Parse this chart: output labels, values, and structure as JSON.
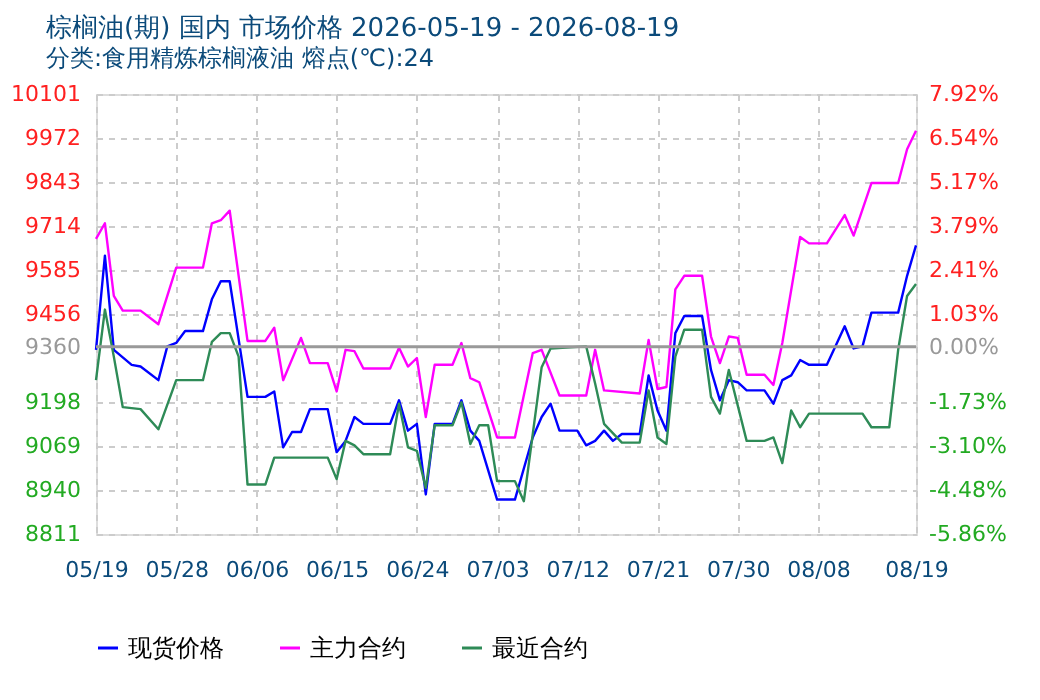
{
  "chart_data": {
    "type": "line",
    "title": "棕榈油(期) 国内 市场价格 2026-05-19 - 2026-08-19",
    "subtitle": "分类:食用精炼棕榈液油 熔点(℃):24",
    "xlim": [
      "2026-05-19",
      "2026-08-19"
    ],
    "xticks": [
      {
        "value": "2026-05-19",
        "label": "05/19"
      },
      {
        "value": "2026-05-28",
        "label": "05/28"
      },
      {
        "value": "2026-06-06",
        "label": "06/06"
      },
      {
        "value": "2026-06-15",
        "label": "06/15"
      },
      {
        "value": "2026-06-24",
        "label": "06/24"
      },
      {
        "value": "2026-07-03",
        "label": "07/03"
      },
      {
        "value": "2026-07-12",
        "label": "07/12"
      },
      {
        "value": "2026-07-21",
        "label": "07/21"
      },
      {
        "value": "2026-07-30",
        "label": "07/30"
      },
      {
        "value": "2026-08-08",
        "label": "08/08"
      },
      {
        "value": "2026-08-19",
        "label": "08/19"
      }
    ],
    "ylim": [
      8811,
      10101
    ],
    "yticks": [
      8811,
      8940,
      9069,
      9198,
      9360,
      9456,
      9585,
      9714,
      9843,
      9972,
      10101
    ],
    "y2lim": [
      -5.86,
      7.92
    ],
    "y2ticks": [
      {
        "value": -5.86,
        "label": "-5.86%"
      },
      {
        "value": -4.48,
        "label": "-4.48%"
      },
      {
        "value": -3.1,
        "label": "-3.10%"
      },
      {
        "value": -1.73,
        "label": "-1.73%"
      },
      {
        "value": 0,
        "label": "0.00%"
      },
      {
        "value": 1.03,
        "label": "1.03%"
      },
      {
        "value": 2.41,
        "label": "2.41%"
      },
      {
        "value": 3.79,
        "label": "3.79%"
      },
      {
        "value": 5.17,
        "label": "5.17%"
      },
      {
        "value": 6.54,
        "label": "6.54%"
      },
      {
        "value": 7.92,
        "label": "7.92%"
      }
    ],
    "ref_lines": [
      {
        "axis": "y",
        "value": 9360,
        "color": "#999999"
      }
    ],
    "grid": true,
    "legend": "bottom",
    "marker": "none",
    "line_style": "solid",
    "series": [
      {
        "name": "现货价格",
        "color": "#0000ff",
        "x": [
          "2026-05-19",
          "2026-05-20",
          "2026-05-21",
          "2026-05-23",
          "2026-05-24",
          "2026-05-26",
          "2026-05-27",
          "2026-05-28",
          "2026-05-29",
          "2026-05-31",
          "2026-06-01",
          "2026-06-02",
          "2026-06-03",
          "2026-06-05",
          "2026-06-07",
          "2026-06-08",
          "2026-06-09",
          "2026-06-10",
          "2026-06-11",
          "2026-06-12",
          "2026-06-14",
          "2026-06-15",
          "2026-06-16",
          "2026-06-17",
          "2026-06-18",
          "2026-06-21",
          "2026-06-22",
          "2026-06-23",
          "2026-06-24",
          "2026-06-25",
          "2026-06-26",
          "2026-06-28",
          "2026-06-29",
          "2026-06-30",
          "2026-07-01",
          "2026-07-03",
          "2026-07-05",
          "2026-07-07",
          "2026-07-08",
          "2026-07-09",
          "2026-07-10",
          "2026-07-12",
          "2026-07-13",
          "2026-07-14",
          "2026-07-15",
          "2026-07-16",
          "2026-07-17",
          "2026-07-19",
          "2026-07-20",
          "2026-07-21",
          "2026-07-22",
          "2026-07-23",
          "2026-07-24",
          "2026-07-26",
          "2026-07-27",
          "2026-07-28",
          "2026-07-29",
          "2026-07-30",
          "2026-07-31",
          "2026-08-02",
          "2026-08-03",
          "2026-08-04",
          "2026-08-05",
          "2026-08-06",
          "2026-08-07",
          "2026-08-09",
          "2026-08-11",
          "2026-08-12",
          "2026-08-13",
          "2026-08-14",
          "2026-08-17",
          "2026-08-18",
          "2026-08-19"
        ],
        "values": [
          9351,
          9627,
          9351,
          9307,
          9302,
          9262,
          9361,
          9371,
          9406,
          9406,
          9499,
          9552,
          9552,
          9213,
          9213,
          9229,
          9065,
          9110,
          9110,
          9177,
          9177,
          9051,
          9084,
          9154,
          9134,
          9134,
          9203,
          9114,
          9134,
          8927,
          9134,
          9134,
          9203,
          9114,
          9084,
          8912,
          8912,
          9094,
          9154,
          9193,
          9114,
          9114,
          9071,
          9084,
          9114,
          9084,
          9104,
          9104,
          9276,
          9173,
          9114,
          9400,
          9450,
          9450,
          9292,
          9203,
          9262,
          9256,
          9232,
          9232,
          9193,
          9262,
          9276,
          9321,
          9307,
          9307,
          9420,
          9355,
          9361,
          9460,
          9460,
          9568,
          9657
        ]
      },
      {
        "name": "主力合约",
        "color": "#ff00ff",
        "x": [
          "2026-05-19",
          "2026-05-20",
          "2026-05-21",
          "2026-05-22",
          "2026-05-24",
          "2026-05-26",
          "2026-05-28",
          "2026-05-31",
          "2026-06-01",
          "2026-06-02",
          "2026-06-03",
          "2026-06-05",
          "2026-06-07",
          "2026-06-08",
          "2026-06-09",
          "2026-06-11",
          "2026-06-12",
          "2026-06-14",
          "2026-06-15",
          "2026-06-16",
          "2026-06-17",
          "2026-06-18",
          "2026-06-21",
          "2026-06-22",
          "2026-06-23",
          "2026-06-24",
          "2026-06-25",
          "2026-06-26",
          "2026-06-28",
          "2026-06-29",
          "2026-06-30",
          "2026-07-01",
          "2026-07-03",
          "2026-07-05",
          "2026-07-07",
          "2026-07-08",
          "2026-07-10",
          "2026-07-13",
          "2026-07-14",
          "2026-07-15",
          "2026-07-19",
          "2026-07-20",
          "2026-07-21",
          "2026-07-22",
          "2026-07-23",
          "2026-07-24",
          "2026-07-26",
          "2026-07-27",
          "2026-07-28",
          "2026-07-29",
          "2026-07-30",
          "2026-07-31",
          "2026-08-02",
          "2026-08-03",
          "2026-08-04",
          "2026-08-06",
          "2026-08-07",
          "2026-08-09",
          "2026-08-11",
          "2026-08-12",
          "2026-08-14",
          "2026-08-17",
          "2026-08-18",
          "2026-08-19"
        ],
        "values": [
          9676,
          9722,
          9509,
          9466,
          9466,
          9426,
          9592,
          9592,
          9722,
          9731,
          9759,
          9377,
          9377,
          9416,
          9262,
          9386,
          9312,
          9312,
          9229,
          9351,
          9347,
          9296,
          9296,
          9357,
          9302,
          9327,
          9154,
          9307,
          9307,
          9371,
          9268,
          9256,
          9094,
          9094,
          9341,
          9351,
          9217,
          9217,
          9351,
          9232,
          9223,
          9380,
          9236,
          9242,
          9528,
          9568,
          9568,
          9390,
          9312,
          9390,
          9386,
          9278,
          9278,
          9248,
          9371,
          9682,
          9663,
          9663,
          9746,
          9686,
          9840,
          9840,
          9939,
          9993
        ]
      },
      {
        "name": "最近合约",
        "color": "#2e8b57",
        "x": [
          "2026-05-19",
          "2026-05-20",
          "2026-05-21",
          "2026-05-22",
          "2026-05-24",
          "2026-05-26",
          "2026-05-28",
          "2026-05-31",
          "2026-06-01",
          "2026-06-02",
          "2026-06-03",
          "2026-06-04",
          "2026-06-05",
          "2026-06-07",
          "2026-06-08",
          "2026-06-14",
          "2026-06-15",
          "2026-06-16",
          "2026-06-17",
          "2026-06-18",
          "2026-06-21",
          "2026-06-22",
          "2026-06-23",
          "2026-06-24",
          "2026-06-25",
          "2026-06-26",
          "2026-06-28",
          "2026-06-29",
          "2026-06-30",
          "2026-07-01",
          "2026-07-02",
          "2026-07-03",
          "2026-07-05",
          "2026-07-06",
          "2026-07-08",
          "2026-07-09",
          "2026-07-13",
          "2026-07-14",
          "2026-07-15",
          "2026-07-17",
          "2026-07-19",
          "2026-07-20",
          "2026-07-21",
          "2026-07-22",
          "2026-07-23",
          "2026-07-24",
          "2026-07-26",
          "2026-07-27",
          "2026-07-28",
          "2026-07-29",
          "2026-07-31",
          "2026-08-02",
          "2026-08-03",
          "2026-08-04",
          "2026-08-05",
          "2026-08-06",
          "2026-08-07",
          "2026-08-13",
          "2026-08-14",
          "2026-08-16",
          "2026-08-17",
          "2026-08-18",
          "2026-08-19"
        ],
        "values": [
          9262,
          9469,
          9331,
          9183,
          9177,
          9118,
          9262,
          9262,
          9374,
          9400,
          9400,
          9331,
          8956,
          8956,
          9035,
          9035,
          8972,
          9084,
          9071,
          9045,
          9045,
          9193,
          9065,
          9055,
          8946,
          9130,
          9130,
          9197,
          9075,
          9130,
          9130,
          8966,
          8966,
          8907,
          9300,
          9355,
          9361,
          9252,
          9134,
          9079,
          9079,
          9232,
          9094,
          9075,
          9331,
          9410,
          9410,
          9213,
          9164,
          9292,
          9084,
          9084,
          9094,
          9019,
          9173,
          9124,
          9164,
          9164,
          9124,
          9124,
          9351,
          9509,
          9544
        ]
      }
    ]
  }
}
